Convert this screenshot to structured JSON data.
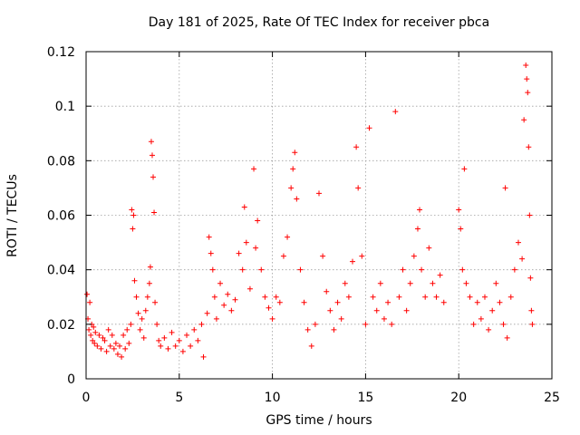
{
  "chart_data": {
    "type": "scatter",
    "title": "Day 181 of 2025, Rate Of TEC Index for receiver pbca",
    "xlabel": "GPS time / hours",
    "ylabel": "ROTI / TECUs",
    "xlim": [
      0,
      25
    ],
    "ylim": [
      0,
      0.12
    ],
    "xticks": [
      0,
      5,
      10,
      15,
      20,
      25
    ],
    "yticks": [
      0,
      0.02,
      0.04,
      0.06,
      0.08,
      0.1,
      0.12
    ],
    "xtick_labels": [
      "0",
      "5",
      "10",
      "15",
      "20",
      "25"
    ],
    "ytick_labels": [
      "0",
      "0.02",
      "0.04",
      "0.06",
      "0.08",
      "0.1",
      "0.12"
    ],
    "grid": true,
    "marker": "+",
    "color": "#ff0000",
    "series": [
      {
        "points": [
          [
            0.05,
            0.031
          ],
          [
            0.1,
            0.022
          ],
          [
            0.15,
            0.018
          ],
          [
            0.2,
            0.028
          ],
          [
            0.25,
            0.016
          ],
          [
            0.3,
            0.02
          ],
          [
            0.35,
            0.014
          ],
          [
            0.4,
            0.019
          ],
          [
            0.45,
            0.013
          ],
          [
            0.5,
            0.017
          ],
          [
            0.6,
            0.012
          ],
          [
            0.7,
            0.016
          ],
          [
            0.8,
            0.011
          ],
          [
            0.9,
            0.015
          ],
          [
            1.0,
            0.014
          ],
          [
            1.1,
            0.01
          ],
          [
            1.2,
            0.018
          ],
          [
            1.3,
            0.012
          ],
          [
            1.4,
            0.016
          ],
          [
            1.5,
            0.011
          ],
          [
            1.6,
            0.013
          ],
          [
            1.7,
            0.009
          ],
          [
            1.8,
            0.012
          ],
          [
            1.9,
            0.008
          ],
          [
            2.0,
            0.016
          ],
          [
            2.1,
            0.011
          ],
          [
            2.2,
            0.018
          ],
          [
            2.3,
            0.013
          ],
          [
            2.4,
            0.02
          ],
          [
            2.45,
            0.062
          ],
          [
            2.5,
            0.055
          ],
          [
            2.55,
            0.06
          ],
          [
            2.6,
            0.036
          ],
          [
            2.7,
            0.03
          ],
          [
            2.8,
            0.024
          ],
          [
            2.9,
            0.018
          ],
          [
            3.0,
            0.022
          ],
          [
            3.1,
            0.015
          ],
          [
            3.2,
            0.025
          ],
          [
            3.3,
            0.03
          ],
          [
            3.4,
            0.035
          ],
          [
            3.45,
            0.041
          ],
          [
            3.5,
            0.087
          ],
          [
            3.55,
            0.082
          ],
          [
            3.6,
            0.074
          ],
          [
            3.65,
            0.061
          ],
          [
            3.7,
            0.028
          ],
          [
            3.8,
            0.02
          ],
          [
            3.9,
            0.014
          ],
          [
            4.0,
            0.012
          ],
          [
            4.2,
            0.015
          ],
          [
            4.4,
            0.011
          ],
          [
            4.6,
            0.017
          ],
          [
            4.8,
            0.012
          ],
          [
            5.0,
            0.014
          ],
          [
            5.2,
            0.01
          ],
          [
            5.4,
            0.016
          ],
          [
            5.6,
            0.012
          ],
          [
            5.8,
            0.018
          ],
          [
            6.0,
            0.014
          ],
          [
            6.2,
            0.02
          ],
          [
            6.3,
            0.008
          ],
          [
            6.5,
            0.024
          ],
          [
            6.6,
            0.052
          ],
          [
            6.7,
            0.046
          ],
          [
            6.8,
            0.04
          ],
          [
            6.9,
            0.03
          ],
          [
            7.0,
            0.022
          ],
          [
            7.2,
            0.035
          ],
          [
            7.4,
            0.027
          ],
          [
            7.6,
            0.031
          ],
          [
            7.8,
            0.025
          ],
          [
            8.0,
            0.029
          ],
          [
            8.2,
            0.046
          ],
          [
            8.4,
            0.04
          ],
          [
            8.5,
            0.063
          ],
          [
            8.6,
            0.05
          ],
          [
            8.8,
            0.033
          ],
          [
            9.0,
            0.077
          ],
          [
            9.1,
            0.048
          ],
          [
            9.2,
            0.058
          ],
          [
            9.4,
            0.04
          ],
          [
            9.6,
            0.03
          ],
          [
            9.8,
            0.026
          ],
          [
            10.0,
            0.022
          ],
          [
            10.2,
            0.03
          ],
          [
            10.4,
            0.028
          ],
          [
            10.6,
            0.045
          ],
          [
            10.8,
            0.052
          ],
          [
            11.0,
            0.07
          ],
          [
            11.1,
            0.077
          ],
          [
            11.2,
            0.083
          ],
          [
            11.3,
            0.066
          ],
          [
            11.5,
            0.04
          ],
          [
            11.7,
            0.028
          ],
          [
            11.9,
            0.018
          ],
          [
            12.1,
            0.012
          ],
          [
            12.3,
            0.02
          ],
          [
            12.5,
            0.068
          ],
          [
            12.7,
            0.045
          ],
          [
            12.9,
            0.032
          ],
          [
            13.1,
            0.025
          ],
          [
            13.3,
            0.018
          ],
          [
            13.5,
            0.028
          ],
          [
            13.7,
            0.022
          ],
          [
            13.9,
            0.035
          ],
          [
            14.1,
            0.03
          ],
          [
            14.3,
            0.043
          ],
          [
            14.5,
            0.085
          ],
          [
            14.6,
            0.07
          ],
          [
            14.8,
            0.045
          ],
          [
            15.0,
            0.02
          ],
          [
            15.2,
            0.092
          ],
          [
            15.4,
            0.03
          ],
          [
            15.6,
            0.025
          ],
          [
            15.8,
            0.035
          ],
          [
            16.0,
            0.022
          ],
          [
            16.2,
            0.028
          ],
          [
            16.4,
            0.02
          ],
          [
            16.6,
            0.098
          ],
          [
            16.8,
            0.03
          ],
          [
            17.0,
            0.04
          ],
          [
            17.2,
            0.025
          ],
          [
            17.4,
            0.035
          ],
          [
            17.6,
            0.045
          ],
          [
            17.8,
            0.055
          ],
          [
            17.9,
            0.062
          ],
          [
            18.0,
            0.04
          ],
          [
            18.2,
            0.03
          ],
          [
            18.4,
            0.048
          ],
          [
            18.6,
            0.035
          ],
          [
            18.8,
            0.03
          ],
          [
            19.0,
            0.038
          ],
          [
            19.2,
            0.028
          ],
          [
            20.0,
            0.062
          ],
          [
            20.1,
            0.055
          ],
          [
            20.2,
            0.04
          ],
          [
            20.3,
            0.077
          ],
          [
            20.4,
            0.035
          ],
          [
            20.6,
            0.03
          ],
          [
            20.8,
            0.02
          ],
          [
            21.0,
            0.028
          ],
          [
            21.2,
            0.022
          ],
          [
            21.4,
            0.03
          ],
          [
            21.6,
            0.018
          ],
          [
            21.8,
            0.025
          ],
          [
            22.0,
            0.035
          ],
          [
            22.2,
            0.028
          ],
          [
            22.4,
            0.02
          ],
          [
            22.5,
            0.07
          ],
          [
            22.6,
            0.015
          ],
          [
            22.8,
            0.03
          ],
          [
            23.0,
            0.04
          ],
          [
            23.2,
            0.05
          ],
          [
            23.4,
            0.044
          ],
          [
            23.5,
            0.095
          ],
          [
            23.6,
            0.115
          ],
          [
            23.65,
            0.11
          ],
          [
            23.7,
            0.105
          ],
          [
            23.75,
            0.085
          ],
          [
            23.8,
            0.06
          ],
          [
            23.85,
            0.037
          ],
          [
            23.9,
            0.025
          ],
          [
            23.95,
            0.02
          ]
        ]
      }
    ]
  }
}
